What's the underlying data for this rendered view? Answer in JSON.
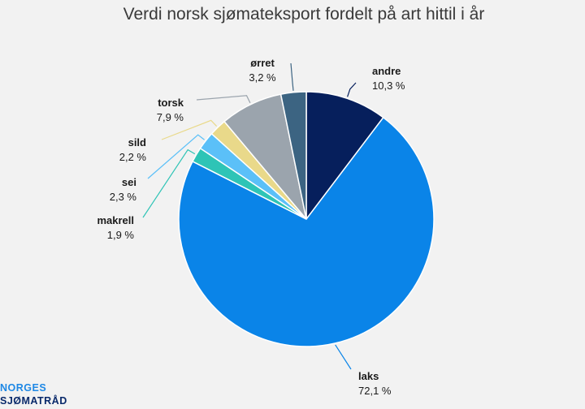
{
  "chart_data": {
    "type": "pie",
    "title": "Verdi norsk sjømateksport fordelt på art hittil i år",
    "slices": [
      {
        "label": "andre",
        "value": 10.3,
        "value_label": "10,3 %",
        "color": "#061f5c"
      },
      {
        "label": "laks",
        "value": 72.1,
        "value_label": "72,1 %",
        "color": "#0a84e8"
      },
      {
        "label": "makrell",
        "value": 1.9,
        "value_label": "1,9 %",
        "color": "#2ec4b6"
      },
      {
        "label": "sei",
        "value": 2.3,
        "value_label": "2,3 %",
        "color": "#5bc0f8"
      },
      {
        "label": "sild",
        "value": 2.2,
        "value_label": "2,2 %",
        "color": "#e9d98a"
      },
      {
        "label": "torsk",
        "value": 7.9,
        "value_label": "7,9 %",
        "color": "#9ba4ad"
      },
      {
        "label": "ørret",
        "value": 3.2,
        "value_label": "3,2 %",
        "color": "#3c6482"
      }
    ],
    "legend": "none"
  },
  "logo": {
    "line1": "NORGES",
    "line2": "SJØMATRÅD"
  }
}
